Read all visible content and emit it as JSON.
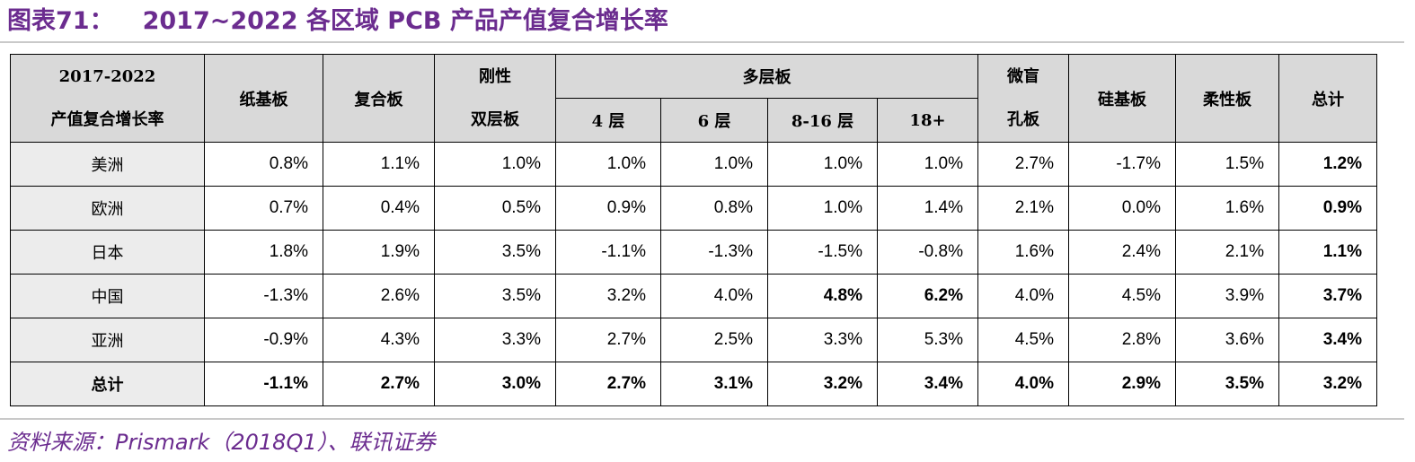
{
  "title": {
    "number": "图表71：",
    "text": "2017~2022 各区域 PCB 产品产值复合增长率"
  },
  "table": {
    "corner": [
      "2017-2022",
      "产值复合增长率"
    ],
    "group_multilayer": "多层板",
    "headers": {
      "paper": "纸基板",
      "composite": "复合板",
      "rigid": [
        "刚性",
        "双层板"
      ],
      "l4": "4 层",
      "l6": "6 层",
      "l8_16": "8-16 层",
      "l18": "18+",
      "hdi": [
        "微盲",
        "孔板"
      ],
      "silicon": "硅基板",
      "flex": "柔性板",
      "total": "总计"
    },
    "rows": [
      {
        "region": "美洲",
        "cells": [
          "0.8%",
          "1.1%",
          "1.0%",
          "1.0%",
          "1.0%",
          "1.0%",
          "1.0%",
          "2.7%",
          "-1.7%",
          "1.5%",
          "1.2%"
        ]
      },
      {
        "region": "欧洲",
        "cells": [
          "0.7%",
          "0.4%",
          "0.5%",
          "0.9%",
          "0.8%",
          "1.0%",
          "1.4%",
          "2.1%",
          "0.0%",
          "1.6%",
          "0.9%"
        ]
      },
      {
        "region": "日本",
        "cells": [
          "1.8%",
          "1.9%",
          "3.5%",
          "-1.1%",
          "-1.3%",
          "-1.5%",
          "-0.8%",
          "1.6%",
          "2.4%",
          "2.1%",
          "1.1%"
        ]
      },
      {
        "region": "中国",
        "cells": [
          "-1.3%",
          "2.6%",
          "3.5%",
          "3.2%",
          "4.0%",
          "4.8%",
          "6.2%",
          "4.0%",
          "4.5%",
          "3.9%",
          "3.7%"
        ]
      },
      {
        "region": "亚洲",
        "cells": [
          "-0.9%",
          "4.3%",
          "3.3%",
          "2.7%",
          "2.5%",
          "3.3%",
          "5.3%",
          "4.5%",
          "2.8%",
          "3.6%",
          "3.4%"
        ]
      },
      {
        "region": "总计",
        "cells": [
          "-1.1%",
          "2.7%",
          "3.0%",
          "2.7%",
          "3.1%",
          "3.2%",
          "3.4%",
          "4.0%",
          "2.9%",
          "3.5%",
          "3.2%"
        ]
      }
    ]
  },
  "source": "资料来源：Prismark（2018Q1）、联讯证券"
}
